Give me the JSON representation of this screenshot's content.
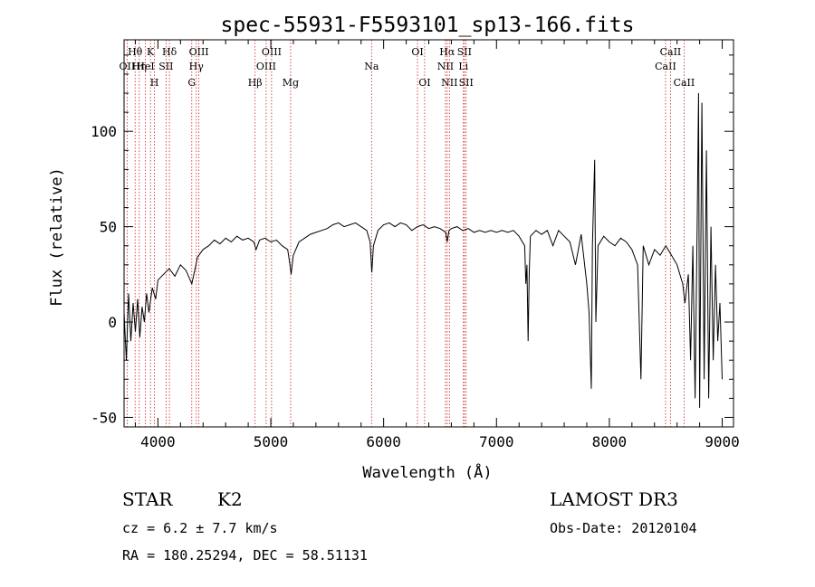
{
  "chart_data": {
    "type": "line",
    "title": "spec-55931-F5593101_sp13-166.fits",
    "xlabel": "Wavelength (Å)",
    "ylabel": "Flux (relative)",
    "xlim": [
      3700,
      9100
    ],
    "ylim": [
      -55,
      148
    ],
    "xticks": [
      4000,
      5000,
      6000,
      7000,
      8000,
      9000
    ],
    "yticks": [
      -50,
      0,
      50,
      100
    ],
    "grid": false,
    "line_color": "#000000",
    "marker_color": "#cc2222",
    "series": [
      {
        "values": [
          [
            3700,
            5
          ],
          [
            3720,
            -20
          ],
          [
            3740,
            15
          ],
          [
            3760,
            -10
          ],
          [
            3780,
            10
          ],
          [
            3800,
            -5
          ],
          [
            3820,
            12
          ],
          [
            3840,
            -8
          ],
          [
            3860,
            8
          ],
          [
            3880,
            0
          ],
          [
            3900,
            15
          ],
          [
            3920,
            5
          ],
          [
            3950,
            18
          ],
          [
            3980,
            12
          ],
          [
            4000,
            22
          ],
          [
            4050,
            25
          ],
          [
            4100,
            28
          ],
          [
            4150,
            24
          ],
          [
            4200,
            30
          ],
          [
            4250,
            27
          ],
          [
            4300,
            20
          ],
          [
            4330,
            28
          ],
          [
            4350,
            34
          ],
          [
            4400,
            38
          ],
          [
            4450,
            40
          ],
          [
            4500,
            43
          ],
          [
            4550,
            41
          ],
          [
            4600,
            44
          ],
          [
            4650,
            42
          ],
          [
            4700,
            45
          ],
          [
            4750,
            43
          ],
          [
            4800,
            44
          ],
          [
            4850,
            42
          ],
          [
            4870,
            38
          ],
          [
            4900,
            43
          ],
          [
            4950,
            44
          ],
          [
            5000,
            42
          ],
          [
            5050,
            43
          ],
          [
            5100,
            40
          ],
          [
            5150,
            38
          ],
          [
            5170,
            30
          ],
          [
            5180,
            25
          ],
          [
            5200,
            35
          ],
          [
            5250,
            42
          ],
          [
            5300,
            44
          ],
          [
            5350,
            46
          ],
          [
            5400,
            47
          ],
          [
            5450,
            48
          ],
          [
            5500,
            49
          ],
          [
            5550,
            51
          ],
          [
            5600,
            52
          ],
          [
            5650,
            50
          ],
          [
            5700,
            51
          ],
          [
            5750,
            52
          ],
          [
            5800,
            50
          ],
          [
            5850,
            48
          ],
          [
            5880,
            42
          ],
          [
            5895,
            26
          ],
          [
            5910,
            40
          ],
          [
            5950,
            48
          ],
          [
            6000,
            51
          ],
          [
            6050,
            52
          ],
          [
            6100,
            50
          ],
          [
            6150,
            52
          ],
          [
            6200,
            51
          ],
          [
            6250,
            48
          ],
          [
            6300,
            50
          ],
          [
            6350,
            51
          ],
          [
            6400,
            49
          ],
          [
            6450,
            50
          ],
          [
            6500,
            49
          ],
          [
            6550,
            47
          ],
          [
            6563,
            42
          ],
          [
            6580,
            48
          ],
          [
            6600,
            49
          ],
          [
            6650,
            50
          ],
          [
            6700,
            48
          ],
          [
            6750,
            49
          ],
          [
            6800,
            47
          ],
          [
            6850,
            48
          ],
          [
            6900,
            47
          ],
          [
            6950,
            48
          ],
          [
            7000,
            47
          ],
          [
            7050,
            48
          ],
          [
            7100,
            47
          ],
          [
            7150,
            48
          ],
          [
            7200,
            45
          ],
          [
            7250,
            40
          ],
          [
            7260,
            20
          ],
          [
            7270,
            30
          ],
          [
            7280,
            -10
          ],
          [
            7290,
            25
          ],
          [
            7300,
            45
          ],
          [
            7350,
            48
          ],
          [
            7400,
            46
          ],
          [
            7450,
            48
          ],
          [
            7500,
            40
          ],
          [
            7550,
            48
          ],
          [
            7600,
            45
          ],
          [
            7650,
            42
          ],
          [
            7700,
            30
          ],
          [
            7750,
            46
          ],
          [
            7800,
            20
          ],
          [
            7820,
            5
          ],
          [
            7840,
            -35
          ],
          [
            7850,
            40
          ],
          [
            7870,
            85
          ],
          [
            7880,
            0
          ],
          [
            7900,
            40
          ],
          [
            7950,
            45
          ],
          [
            8000,
            42
          ],
          [
            8050,
            40
          ],
          [
            8100,
            44
          ],
          [
            8150,
            42
          ],
          [
            8200,
            38
          ],
          [
            8250,
            30
          ],
          [
            8280,
            -30
          ],
          [
            8300,
            40
          ],
          [
            8350,
            30
          ],
          [
            8400,
            38
          ],
          [
            8450,
            35
          ],
          [
            8500,
            40
          ],
          [
            8550,
            35
          ],
          [
            8600,
            30
          ],
          [
            8650,
            20
          ],
          [
            8670,
            10
          ],
          [
            8700,
            25
          ],
          [
            8720,
            -20
          ],
          [
            8740,
            40
          ],
          [
            8760,
            -40
          ],
          [
            8780,
            60
          ],
          [
            8790,
            120
          ],
          [
            8800,
            -45
          ],
          [
            8820,
            115
          ],
          [
            8840,
            -30
          ],
          [
            8860,
            90
          ],
          [
            8880,
            -40
          ],
          [
            8900,
            50
          ],
          [
            8920,
            -20
          ],
          [
            8940,
            30
          ],
          [
            8960,
            -10
          ],
          [
            8980,
            10
          ],
          [
            9000,
            -30
          ]
        ]
      }
    ],
    "line_markers": [
      {
        "wavelength": 3727,
        "row": 2,
        "label": "OII"
      },
      {
        "wavelength": 3798,
        "row": 1,
        "label": "Hθ"
      },
      {
        "wavelength": 3835,
        "row": 2,
        "label": "Hη"
      },
      {
        "wavelength": 3889,
        "row": 2,
        "label": "HeI"
      },
      {
        "wavelength": 3934,
        "row": 1,
        "label": "K"
      },
      {
        "wavelength": 3969,
        "row": 3,
        "label": "H"
      },
      {
        "wavelength": 4072,
        "row": 2,
        "label": "SII"
      },
      {
        "wavelength": 4102,
        "row": 1,
        "label": "Hδ"
      },
      {
        "wavelength": 4300,
        "row": 3,
        "label": "G"
      },
      {
        "wavelength": 4340,
        "row": 2,
        "label": "Hγ"
      },
      {
        "wavelength": 4363,
        "row": 1,
        "label": "OIII"
      },
      {
        "wavelength": 4861,
        "row": 3,
        "label": "Hβ"
      },
      {
        "wavelength": 4959,
        "row": 2,
        "label": "OIII"
      },
      {
        "wavelength": 5007,
        "row": 1,
        "label": "OIII"
      },
      {
        "wavelength": 5176,
        "row": 3,
        "label": "Mg"
      },
      {
        "wavelength": 5893,
        "row": 2,
        "label": "Na"
      },
      {
        "wavelength": 6300,
        "row": 1,
        "label": "OI"
      },
      {
        "wavelength": 6363,
        "row": 3,
        "label": "OI"
      },
      {
        "wavelength": 6548,
        "row": 2,
        "label": "NII"
      },
      {
        "wavelength": 6563,
        "row": 1,
        "label": "Hα"
      },
      {
        "wavelength": 6583,
        "row": 3,
        "label": "NII"
      },
      {
        "wavelength": 6707,
        "row": 2,
        "label": "Li"
      },
      {
        "wavelength": 6716,
        "row": 1,
        "label": "SII"
      },
      {
        "wavelength": 6731,
        "row": 3,
        "label": "SII"
      },
      {
        "wavelength": 8498,
        "row": 2,
        "label": "CaII"
      },
      {
        "wavelength": 8542,
        "row": 1,
        "label": "CaII"
      },
      {
        "wavelength": 8662,
        "row": 3,
        "label": "CaII"
      }
    ]
  },
  "footer": {
    "object_type": "STAR",
    "subclass": "K2",
    "redshift": "cz = 6.2 ± 7.7 km/s",
    "coords": "RA = 180.25294, DEC =  58.51131",
    "survey": "LAMOST DR3",
    "obs_date": "Obs-Date: 20120104"
  }
}
